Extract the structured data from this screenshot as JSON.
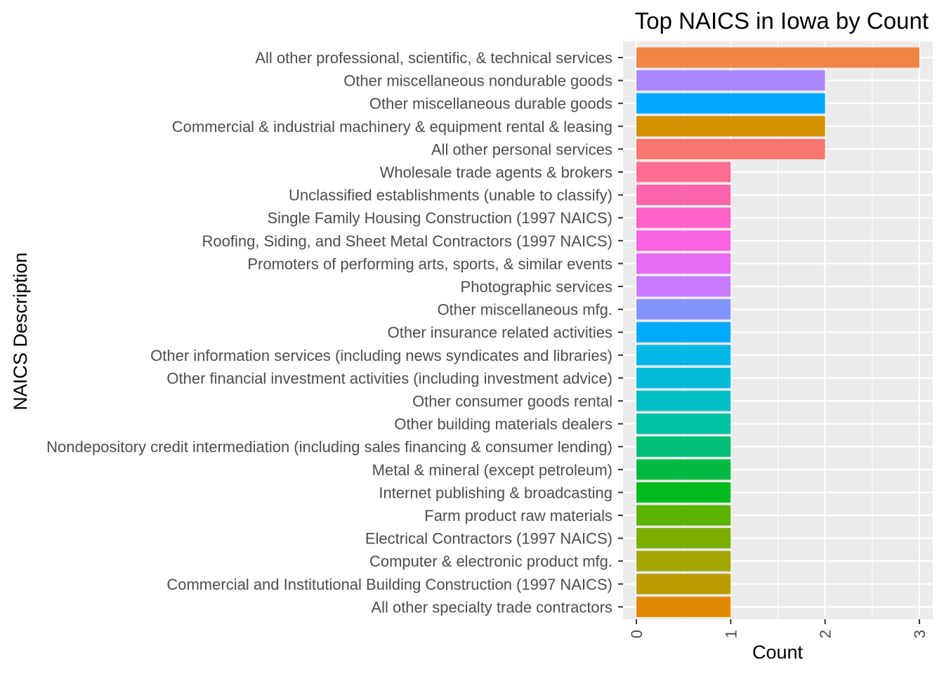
{
  "chart_data": {
    "type": "bar",
    "orientation": "horizontal",
    "title": "Top NAICS in Iowa by Count",
    "xlabel": "Count",
    "ylabel": "NAICS Description",
    "xlim": [
      0,
      3
    ],
    "x_ticks": [
      "0",
      "1",
      "2",
      "3"
    ],
    "grid": true,
    "legend": "none",
    "categories": [
      "All other professional, scientific, & technical services",
      "Other miscellaneous nondurable goods",
      "Other miscellaneous durable goods",
      "Commercial & industrial machinery & equipment rental & leasing",
      "All other personal services",
      "Wholesale trade agents & brokers",
      "Unclassified establishments (unable to classify)",
      "Single Family Housing Construction (1997 NAICS)",
      "Roofing, Siding, and Sheet Metal Contractors (1997 NAICS)",
      "Promoters of performing arts, sports, & similar events",
      "Photographic services",
      "Other miscellaneous mfg.",
      "Other insurance related activities",
      "Other information services (including news syndicates and libraries)",
      "Other financial investment activities (including investment advice)",
      "Other consumer goods rental",
      "Other building materials dealers",
      "Nondepository credit intermediation (including sales financing & consumer lending)",
      "Metal & mineral (except petroleum)",
      "Internet publishing & broadcasting",
      "Farm product raw materials",
      "Electrical Contractors (1997 NAICS)",
      "Computer & electronic product mfg.",
      "Commercial and Institutional Building Construction (1997 NAICS)",
      "All other specialty trade contractors"
    ],
    "values": [
      3,
      2,
      2,
      2,
      2,
      1,
      1,
      1,
      1,
      1,
      1,
      1,
      1,
      1,
      1,
      1,
      1,
      1,
      1,
      1,
      1,
      1,
      1,
      1,
      1
    ],
    "colors": [
      "#F08545",
      "#AB87FF",
      "#00A9FF",
      "#D39200",
      "#F8766D",
      "#FF6C91",
      "#FF65AC",
      "#FF61C9",
      "#F863DF",
      "#E76BF3",
      "#C77CFF",
      "#8494FF",
      "#00ABFD",
      "#00B8E7",
      "#00BCD6",
      "#00BFC4",
      "#00C1A3",
      "#00BE77",
      "#00BA42",
      "#00BB1C",
      "#5BB300",
      "#7CAE00",
      "#A3A500",
      "#BB9D00",
      "#E38900"
    ],
    "panel_background": "#EBEBEB",
    "grid_color": "#FFFFFF"
  }
}
